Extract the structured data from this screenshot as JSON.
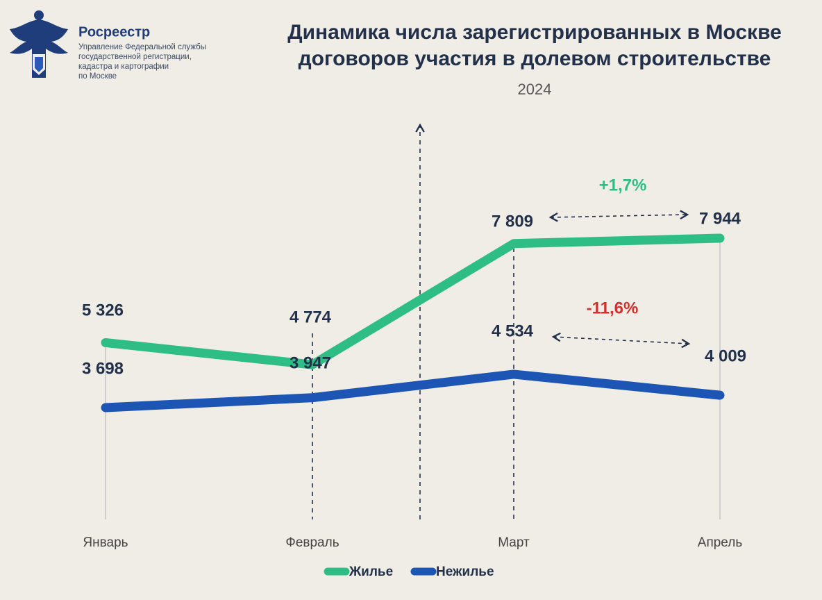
{
  "logo": {
    "name": "Росреестр",
    "lines": [
      "Управление Федеральной службы",
      "государственной регистрации,",
      "кадастра и картографии",
      "по Москве"
    ]
  },
  "chart_data": {
    "type": "line",
    "title": [
      "Динамика числа зарегистрированных в Москве",
      "договоров участия в долевом строительстве"
    ],
    "subtitle": "2024",
    "categories": [
      "Январь",
      "Февраль",
      "Март",
      "Апрель"
    ],
    "series": [
      {
        "name": "Жилье",
        "color": "#2fbd86",
        "values": [
          5326,
          4774,
          7809,
          7944
        ],
        "value_labels": [
          "5 326",
          "4 774",
          "7 809",
          "7 944"
        ]
      },
      {
        "name": "Нежилье",
        "color": "#1d55b4",
        "values": [
          3698,
          3947,
          4534,
          4009
        ],
        "value_labels": [
          "3 698",
          "3 947",
          "4 534",
          "4 009"
        ]
      }
    ],
    "annotations": [
      {
        "text": "+1,7%",
        "color": "#2fbd86"
      },
      {
        "text": "-11,6%",
        "color": "#d0312d"
      }
    ],
    "legend": "bottom"
  }
}
